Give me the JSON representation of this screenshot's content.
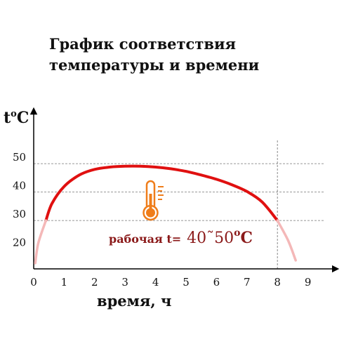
{
  "chart_data": {
    "type": "line",
    "title_lines": [
      "График соответствия",
      "температуры и времени"
    ],
    "ylabel": {
      "base": "t",
      "sup": "o",
      "unit": "C"
    },
    "xlabel": "время, ч",
    "x_ticks": [
      "0",
      "1",
      "2",
      "3",
      "4",
      "5",
      "6",
      "7",
      "8",
      "9"
    ],
    "y_ticks": [
      "20",
      "30",
      "40",
      "50"
    ],
    "xlim": [
      0,
      9.6
    ],
    "ylim": [
      13,
      55
    ],
    "grid": "dashed horizontal at 30, 40, 50",
    "vline_x": 8,
    "series": [
      {
        "color": "#e01010",
        "points": [
          [
            0.4,
            30
          ],
          [
            0.6,
            36
          ],
          [
            1.0,
            42
          ],
          [
            1.5,
            46
          ],
          [
            2.0,
            48
          ],
          [
            2.5,
            48.8
          ],
          [
            3.0,
            49.1
          ],
          [
            3.5,
            49.1
          ],
          [
            4.0,
            48.8
          ],
          [
            4.5,
            48.2
          ],
          [
            5.0,
            47.3
          ],
          [
            5.5,
            46
          ],
          [
            6.0,
            44.5
          ],
          [
            6.5,
            42.6
          ],
          [
            7.0,
            40.2
          ],
          [
            7.5,
            36.5
          ],
          [
            8.0,
            30
          ]
        ]
      },
      {
        "color": "#f4b8b8",
        "points": [
          [
            0.05,
            15
          ],
          [
            0.15,
            22
          ],
          [
            0.4,
            30
          ]
        ]
      },
      {
        "color": "#f4b8b8",
        "points": [
          [
            8.0,
            30
          ],
          [
            8.35,
            23
          ],
          [
            8.6,
            16
          ]
        ]
      }
    ],
    "annotation": {
      "label": "рабочая t=",
      "value": "40˜50",
      "sup": "o",
      "unit": "C"
    },
    "colors": {
      "main_line": "#e01010",
      "fade_line": "#f4b8b8",
      "annotation": "#8b1a1a",
      "thermometer": "#ef7d1a"
    }
  }
}
